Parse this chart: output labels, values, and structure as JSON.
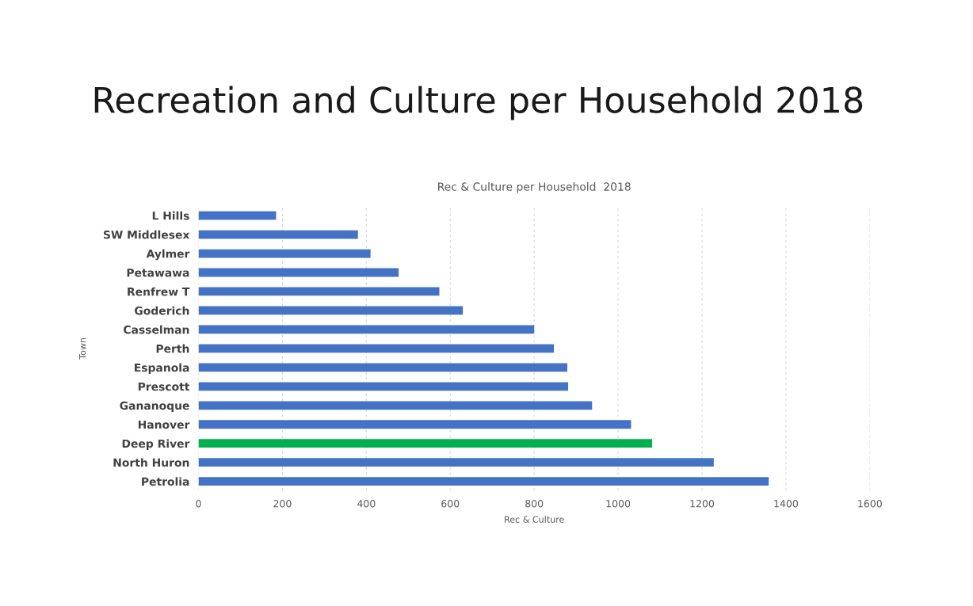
{
  "chart_data": {
    "type": "bar",
    "orientation": "horizontal",
    "title": "Recreation and Culture per Household 2018",
    "subtitle": "Rec & Culture per Household  2018",
    "xlabel": "Rec & Culture",
    "ylabel": "Town",
    "categories": [
      "L Hills",
      "SW Middlesex",
      "Aylmer",
      "Petawawa",
      "Renfrew T",
      "Goderich",
      "Casselman",
      "Perth",
      "Espanola",
      "Prescott",
      "Gananoque",
      "Hanover",
      "Deep River",
      "North Huron",
      "Petrolia"
    ],
    "values": [
      185,
      380,
      410,
      477,
      574,
      630,
      800,
      847,
      879,
      881,
      938,
      1031,
      1081,
      1228,
      1359
    ],
    "colors": [
      "#4472c4",
      "#4472c4",
      "#4472c4",
      "#4472c4",
      "#4472c4",
      "#4472c4",
      "#4472c4",
      "#4472c4",
      "#4472c4",
      "#4472c4",
      "#4472c4",
      "#4472c4",
      "#00b050",
      "#4472c4",
      "#4472c4"
    ],
    "xlim": [
      0,
      1600
    ],
    "xticks": [
      0,
      200,
      400,
      600,
      800,
      1000,
      1200,
      1400,
      1600
    ],
    "grid": "x"
  }
}
